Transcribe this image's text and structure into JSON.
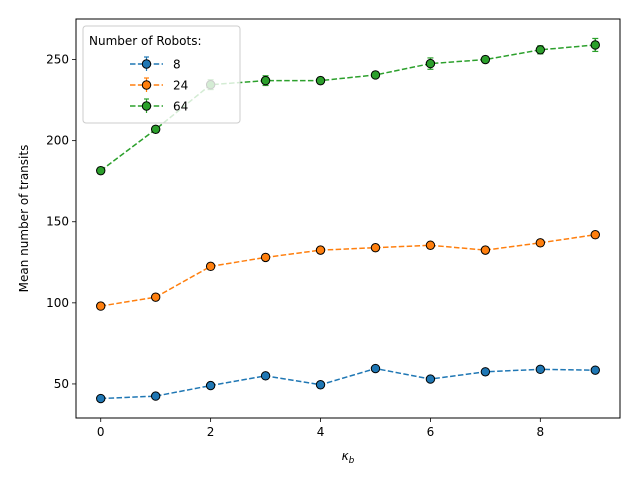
{
  "chart_data": {
    "type": "line",
    "xlabel": "κ_b",
    "ylabel": "Mean number of transits",
    "x": [
      0,
      1,
      2,
      3,
      4,
      5,
      6,
      7,
      8,
      9
    ],
    "xlim": [
      -0.45,
      9.45
    ],
    "ylim": [
      29,
      275
    ],
    "xticks": [
      0,
      2,
      4,
      6,
      8
    ],
    "yticks": [
      50,
      100,
      150,
      200,
      250
    ],
    "grid": false,
    "legend": {
      "title": "Number of Robots:",
      "placement": "top-left"
    },
    "series": [
      {
        "name": "8",
        "color": "#1f77b4",
        "values": [
          41,
          42.5,
          49,
          55,
          49.5,
          59.5,
          53,
          57.5,
          59,
          58.5
        ],
        "errors": [
          1.5,
          1.5,
          1.5,
          1.5,
          1.5,
          1.5,
          1.5,
          1.5,
          1.5,
          1.5
        ]
      },
      {
        "name": "24",
        "color": "#ff7f0e",
        "values": [
          98,
          103.5,
          122.5,
          128,
          132.5,
          134,
          135.5,
          132.5,
          137,
          142
        ],
        "errors": [
          2,
          2,
          2,
          2,
          2,
          2,
          2,
          2,
          2,
          2
        ]
      },
      {
        "name": "64",
        "color": "#2ca02c",
        "values": [
          181.5,
          207,
          234.5,
          237,
          237,
          240.5,
          247.5,
          250,
          256,
          259
        ],
        "errors": [
          2,
          2,
          3,
          3,
          2,
          2,
          3.5,
          2,
          2.5,
          4
        ]
      }
    ]
  }
}
